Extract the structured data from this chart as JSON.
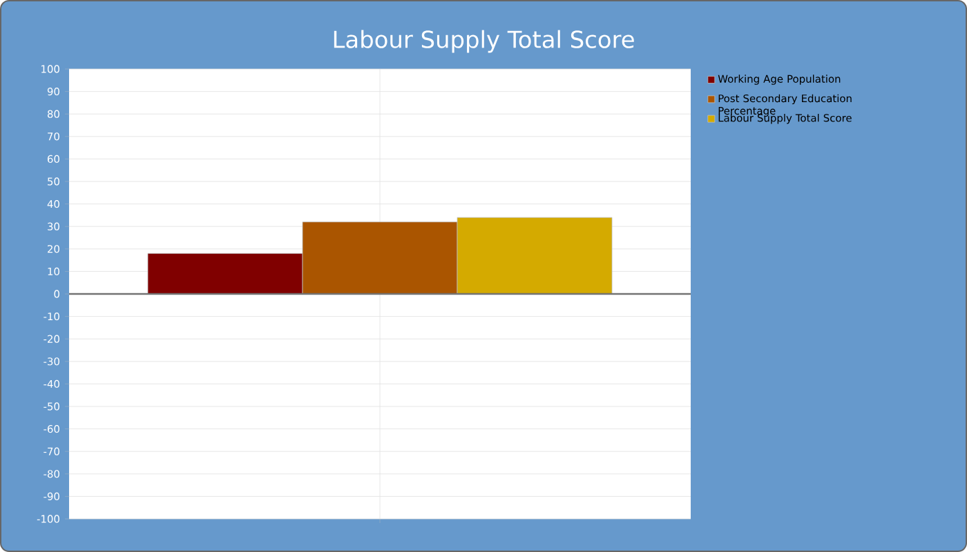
{
  "chart_data": {
    "type": "bar",
    "title": "Labour Supply Total Score",
    "categories": [
      null
    ],
    "series": [
      {
        "name": "Working Age Population",
        "color": "#800000",
        "values": [
          18
        ]
      },
      {
        "name": "Post Secondary Education Percentage",
        "color": "#aa5500",
        "values": [
          32
        ]
      },
      {
        "name": "Labour Supply Total Score",
        "color": "#d4aa00",
        "values": [
          34
        ]
      }
    ],
    "ylim": [
      -100,
      100
    ],
    "yticks": [
      -100,
      -90,
      -80,
      -70,
      -60,
      -50,
      -40,
      -30,
      -20,
      -10,
      0,
      10,
      20,
      30,
      40,
      50,
      60,
      70,
      80,
      90,
      100
    ],
    "grid": true,
    "legend": "top right",
    "tick_labels": "y"
  }
}
